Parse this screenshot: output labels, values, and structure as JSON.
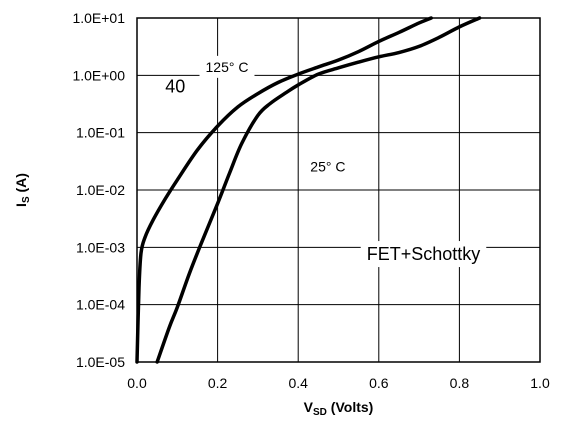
{
  "chart_data": {
    "type": "line",
    "xlabel": "V",
    "xlabel_sub": "SD",
    "xlabel_suffix": " (Volts)",
    "ylabel": "I",
    "ylabel_sub": "S",
    "ylabel_suffix": " (A)",
    "xlim": [
      0,
      1.0
    ],
    "ylim": [
      1e-05,
      10
    ],
    "y_scale": "log",
    "grid": true,
    "x_ticks": [
      "0.0",
      "0.2",
      "0.4",
      "0.6",
      "0.8",
      "1.0"
    ],
    "y_ticks": [
      "1.0E+01",
      "1.0E+00",
      "1.0E-01",
      "1.0E-02",
      "1.0E-03",
      "1.0E-04",
      "1.0E-05"
    ],
    "series": [
      {
        "name": "125° C",
        "x": [
          0.0,
          0.005,
          0.01,
          0.02,
          0.04,
          0.07,
          0.1,
          0.15,
          0.2,
          0.25,
          0.3,
          0.35,
          0.4,
          0.45,
          0.5,
          0.55,
          0.6,
          0.65,
          0.7,
          0.73
        ],
        "y": [
          1e-05,
          0.0002,
          0.0008,
          0.0015,
          0.003,
          0.007,
          0.015,
          0.05,
          0.13,
          0.28,
          0.48,
          0.75,
          1.05,
          1.4,
          1.85,
          2.6,
          3.9,
          5.6,
          8.2,
          10
        ]
      },
      {
        "name": "25° C",
        "x": [
          0.05,
          0.08,
          0.1,
          0.13,
          0.16,
          0.2,
          0.23,
          0.26,
          0.3,
          0.33,
          0.37,
          0.4,
          0.45,
          0.5,
          0.55,
          0.6,
          0.65,
          0.7,
          0.75,
          0.8,
          0.85
        ],
        "y": [
          1e-05,
          4e-05,
          9e-05,
          0.00035,
          0.0012,
          0.0058,
          0.02,
          0.065,
          0.2,
          0.32,
          0.5,
          0.68,
          1.05,
          1.35,
          1.7,
          2.1,
          2.5,
          3.2,
          4.6,
          7.0,
          10
        ]
      }
    ],
    "annotations": [
      {
        "text": "125° C",
        "x": 0.17,
        "y": 1.15
      },
      {
        "text": "40",
        "x": 0.07,
        "y": 0.5
      },
      {
        "text": "25° C",
        "x": 0.43,
        "y": 0.021
      },
      {
        "text": "FET+Schottky",
        "x": 0.57,
        "y": 0.0006
      }
    ]
  }
}
